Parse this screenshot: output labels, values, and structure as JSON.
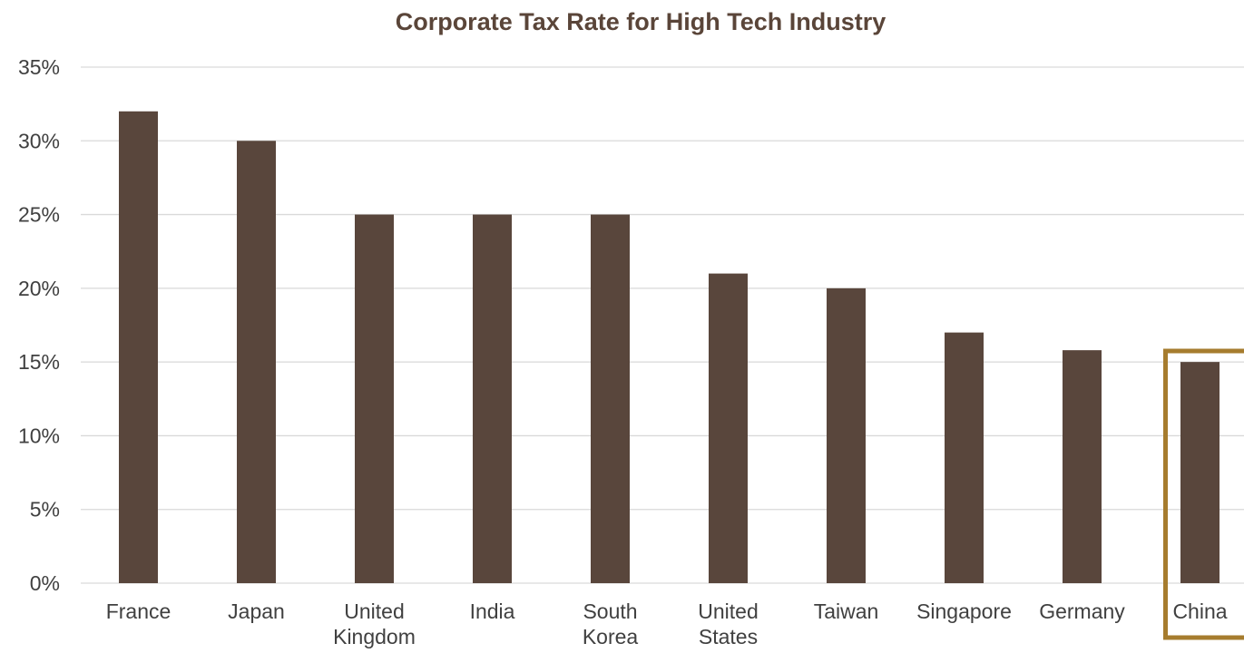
{
  "chart_data": {
    "type": "bar",
    "title": "Corporate Tax Rate for High Tech Industry",
    "xlabel": "",
    "ylabel": "",
    "ylim": [
      0,
      35
    ],
    "yticks": [
      "0%",
      "5%",
      "10%",
      "15%",
      "20%",
      "25%",
      "30%",
      "35%"
    ],
    "categories": [
      [
        "France"
      ],
      [
        "Japan"
      ],
      [
        "United",
        "Kingdom"
      ],
      [
        "India"
      ],
      [
        "South",
        "Korea"
      ],
      [
        "United",
        "States"
      ],
      [
        "Taiwan"
      ],
      [
        "Singapore"
      ],
      [
        "Germany"
      ],
      [
        "China"
      ]
    ],
    "values": [
      32,
      30,
      25,
      25,
      25,
      21,
      20,
      17,
      15.8,
      15
    ],
    "grid": true,
    "highlight": "China",
    "colors": {
      "bar": "#59463c",
      "highlight_box": "#a67c2e",
      "grid": "#d9d9d9",
      "title": "#5a4539",
      "text": "#404040"
    }
  }
}
